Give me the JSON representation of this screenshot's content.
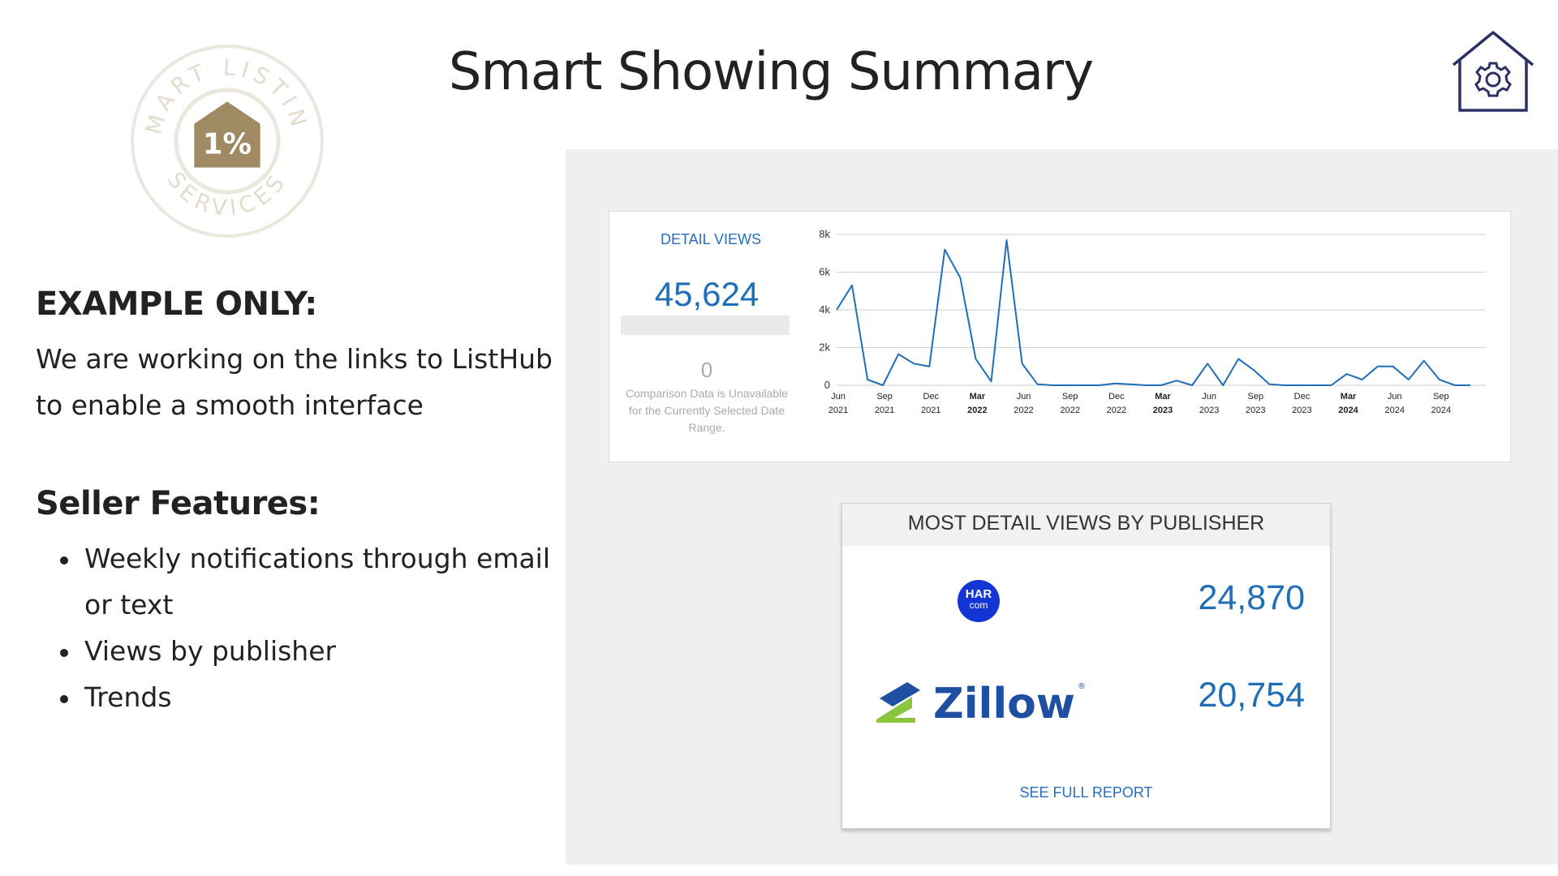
{
  "page": {
    "title": "Smart Showing Summary"
  },
  "logo": {
    "top_text": "SMART LISTING",
    "bottom_text": "SERVICES",
    "center_text": "1%",
    "color": "#a08a63"
  },
  "header_icon": "house-gear-icon",
  "left": {
    "example_title": "EXAMPLE ONLY:",
    "example_text": "We are working on the links to ListHub to enable a smooth interface",
    "seller_title": "Seller Features:",
    "features": [
      "Weekly notifications through email or text",
      "Views by publisher",
      "Trends"
    ]
  },
  "detail_views": {
    "label": "DETAIL VIEWS",
    "value": "45,624",
    "comparison_value": "0",
    "comparison_text": "Comparison Data is Unavailable for the Currently Selected Date Range."
  },
  "chart_data": {
    "type": "line",
    "title": "",
    "xlabel": "",
    "ylabel": "",
    "ylim": [
      0,
      8000
    ],
    "y_ticks": [
      "0",
      "2k",
      "4k",
      "6k",
      "8k"
    ],
    "x_ticks": [
      {
        "month": "Jun",
        "year": "2021",
        "bold": false
      },
      {
        "month": "Sep",
        "year": "2021",
        "bold": false
      },
      {
        "month": "Dec",
        "year": "2021",
        "bold": false
      },
      {
        "month": "Mar",
        "year": "2022",
        "bold": true
      },
      {
        "month": "Jun",
        "year": "2022",
        "bold": false
      },
      {
        "month": "Sep",
        "year": "2022",
        "bold": false
      },
      {
        "month": "Dec",
        "year": "2022",
        "bold": false
      },
      {
        "month": "Mar",
        "year": "2023",
        "bold": true
      },
      {
        "month": "Jun",
        "year": "2023",
        "bold": false
      },
      {
        "month": "Sep",
        "year": "2023",
        "bold": false
      },
      {
        "month": "Dec",
        "year": "2023",
        "bold": false
      },
      {
        "month": "Mar",
        "year": "2024",
        "bold": true
      },
      {
        "month": "Jun",
        "year": "2024",
        "bold": false
      },
      {
        "month": "Sep",
        "year": "2024",
        "bold": false
      }
    ],
    "x_start": "2021-06",
    "x_end": "2024-12",
    "series": [
      {
        "color": "#1f6fb8",
        "x": [
          "2021-06",
          "2021-07",
          "2021-08",
          "2021-09",
          "2021-10",
          "2021-11",
          "2021-12",
          "2022-01",
          "2022-02",
          "2022-03",
          "2022-04",
          "2022-05",
          "2022-06",
          "2022-07",
          "2022-08",
          "2022-09",
          "2022-10",
          "2022-11",
          "2022-12",
          "2023-01",
          "2023-02",
          "2023-03",
          "2023-04",
          "2023-05",
          "2023-06",
          "2023-07",
          "2023-08",
          "2023-09",
          "2023-10",
          "2023-11",
          "2023-12",
          "2024-01",
          "2024-02",
          "2024-03",
          "2024-04",
          "2024-05",
          "2024-06",
          "2024-07",
          "2024-08",
          "2024-09",
          "2024-10",
          "2024-11"
        ],
        "values": [
          4000,
          5300,
          300,
          0,
          1650,
          1150,
          1000,
          7200,
          5700,
          1400,
          200,
          7700,
          1150,
          50,
          0,
          0,
          0,
          0,
          100,
          50,
          0,
          0,
          250,
          0,
          1150,
          0,
          1400,
          800,
          50,
          0,
          0,
          0,
          0,
          600,
          300,
          1000,
          1000,
          300,
          1300,
          300,
          0,
          0
        ]
      }
    ],
    "grid": true,
    "legend": "none"
  },
  "publishers": {
    "title": "MOST DETAIL VIEWS BY PUBLISHER",
    "items": [
      {
        "name_line1": "HAR",
        "name_line2": "com",
        "value": "24,870"
      },
      {
        "name": "Zillow",
        "value": "20,754"
      }
    ],
    "report_link": "SEE FULL REPORT"
  }
}
